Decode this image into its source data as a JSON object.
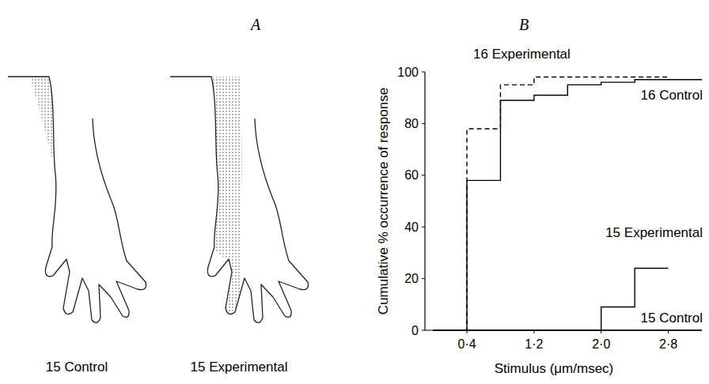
{
  "panel_a": {
    "panel_label": "A",
    "drawings": [
      {
        "label": "15 Control"
      },
      {
        "label": "15 Experimental"
      }
    ]
  },
  "chart_data": {
    "type": "step",
    "panel_label": "B",
    "x_label": "Stimulus (μm/msec)",
    "y_label": "Cumulative % occurrence of response",
    "x": [
      0,
      0.4,
      0.8,
      1.2,
      1.6,
      2.0,
      2.4,
      2.8,
      3.2
    ],
    "series": [
      {
        "name": "16 Experimental",
        "color": "#000000",
        "line_style": "dashed",
        "values": [
          0,
          78,
          95,
          98,
          98,
          98,
          98,
          98,
          null
        ]
      },
      {
        "name": "16 Control",
        "color": "#000000",
        "line_style": "solid",
        "values": [
          0,
          58,
          89,
          91,
          95,
          96,
          97,
          97,
          97
        ]
      },
      {
        "name": "15 Experimental",
        "color": "#000000",
        "line_style": "solid",
        "values": [
          0,
          0,
          0,
          0,
          0,
          9,
          24,
          24,
          null
        ]
      },
      {
        "name": "15 Control",
        "color": "#000000",
        "line_style": "solid",
        "values": [
          0,
          0,
          0,
          0,
          0,
          0,
          0,
          0,
          0
        ]
      }
    ],
    "xlim": [
      -0.1,
      3.2
    ],
    "xticks": [
      {
        "value": 0.4,
        "label": "0·4"
      },
      {
        "value": 1.2,
        "label": "1·2"
      },
      {
        "value": 2.0,
        "label": "2·0"
      },
      {
        "value": 2.8,
        "label": "2·8"
      }
    ],
    "ylim": [
      0,
      100
    ],
    "yticks": [
      0,
      20,
      40,
      60,
      80,
      100
    ],
    "grid": false
  }
}
